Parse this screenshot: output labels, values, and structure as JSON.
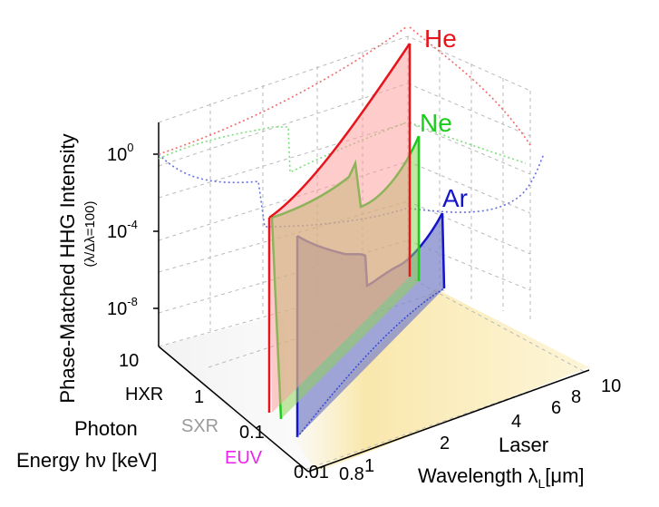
{
  "chart_data": {
    "type": "area",
    "title": "",
    "ylabel": "Phase-Matched HHG Intensity",
    "ylabel_sub": "(λ/Δλ=100)",
    "ylabel_sub_parts": [
      "(λ/Δλ",
      "=",
      "100)"
    ],
    "yticks": [
      {
        "base": "10",
        "exp": "0",
        "value": 1
      },
      {
        "base": "10",
        "exp": "-4",
        "value": 0.0001
      },
      {
        "base": "10",
        "exp": "-8",
        "value": 1e-08
      }
    ],
    "photon_axis": {
      "label_line1": "Photon",
      "label_line2": "Energy hν [keV]",
      "ticks": [
        "10",
        "1",
        "0.1",
        "0.01"
      ],
      "ticks_keV": [
        10,
        1,
        0.1,
        0.01
      ],
      "region_labels": [
        {
          "text": "HXR",
          "color": "#000000"
        },
        {
          "text": "SXR",
          "color": "#9a9a9a"
        },
        {
          "text": "EUV",
          "color": "#ee22ee"
        }
      ]
    },
    "wavelength_axis": {
      "label_line1": "Laser",
      "label_line2": "Wavelength λ",
      "label_sub": "L",
      "label_units": "[μm]",
      "ticks": [
        "0.8",
        "1",
        "2",
        "4",
        "6",
        "8",
        "10"
      ],
      "ticks_um": [
        0.8,
        1,
        2,
        4,
        6,
        8,
        10
      ]
    },
    "series": [
      {
        "name": "He",
        "color": "#e8141c",
        "fill": "#ff9a9a",
        "wavelength_um": [
          0.8,
          2,
          4,
          6,
          8,
          10
        ],
        "log10_intensity": [
          -5.0,
          -3.8,
          -2.2,
          -0.8,
          0.9,
          3.3
        ]
      },
      {
        "name": "Ne",
        "color": "#1ccc1c",
        "fill": "#8fd25a",
        "wavelength_um": [
          0.8,
          2,
          4,
          4.5,
          6,
          8,
          10
        ],
        "log10_intensity": [
          -5.2,
          -4.2,
          -2.6,
          -4.3,
          -3.2,
          -2.2,
          -0.6
        ]
      },
      {
        "name": "Ar",
        "color": "#1414c8",
        "fill": "#7f87c8",
        "wavelength_um": [
          0.8,
          1,
          2,
          4,
          4.5,
          6,
          8,
          10
        ],
        "log10_intensity": [
          -6.0,
          -6.8,
          -7.0,
          -6.6,
          -9.0,
          -8.0,
          -6.6,
          -4.8
        ]
      }
    ]
  }
}
